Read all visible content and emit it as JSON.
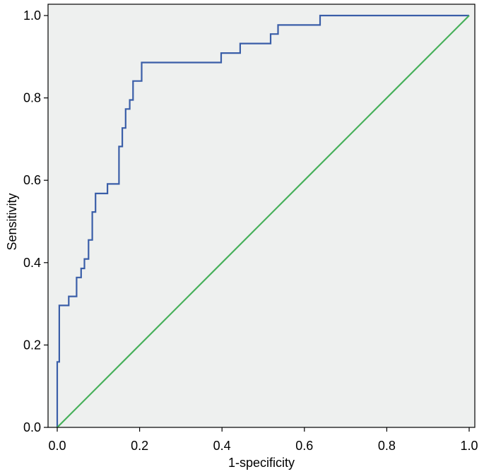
{
  "chart_data": {
    "type": "line",
    "title": "",
    "xlabel": "1-specificity",
    "ylabel": "Sensitivity",
    "xlim": [
      0,
      1
    ],
    "ylim": [
      0,
      1
    ],
    "x_ticks": [
      "0.0",
      "0.2",
      "0.4",
      "0.6",
      "0.8",
      "1.0"
    ],
    "y_ticks": [
      "0.0",
      "0.2",
      "0.4",
      "0.6",
      "0.8",
      "1.0"
    ],
    "grid": false,
    "background": "#eef0ef",
    "series": [
      {
        "color": "#3a5ea8",
        "x": [
          0.0,
          0.0,
          0.005,
          0.005,
          0.012,
          0.012,
          0.028,
          0.028,
          0.047,
          0.047,
          0.058,
          0.058,
          0.066,
          0.066,
          0.076,
          0.076,
          0.085,
          0.085,
          0.093,
          0.093,
          0.122,
          0.122,
          0.15,
          0.15,
          0.158,
          0.158,
          0.166,
          0.166,
          0.176,
          0.176,
          0.184,
          0.184,
          0.205,
          0.205,
          0.398,
          0.398,
          0.444,
          0.444,
          0.518,
          0.518,
          0.536,
          0.536,
          0.638,
          0.638,
          1.0
        ],
        "y": [
          0.0,
          0.159,
          0.159,
          0.296,
          0.296,
          0.296,
          0.296,
          0.318,
          0.318,
          0.364,
          0.364,
          0.386,
          0.386,
          0.409,
          0.409,
          0.455,
          0.455,
          0.523,
          0.523,
          0.568,
          0.568,
          0.591,
          0.591,
          0.682,
          0.682,
          0.727,
          0.727,
          0.773,
          0.773,
          0.795,
          0.795,
          0.841,
          0.841,
          0.886,
          0.886,
          0.909,
          0.909,
          0.932,
          0.932,
          0.955,
          0.955,
          0.977,
          0.977,
          1.0,
          1.0
        ]
      },
      {
        "color": "#46b05a",
        "x": [
          0.0,
          1.0
        ],
        "y": [
          0.0,
          1.0
        ]
      }
    ]
  }
}
